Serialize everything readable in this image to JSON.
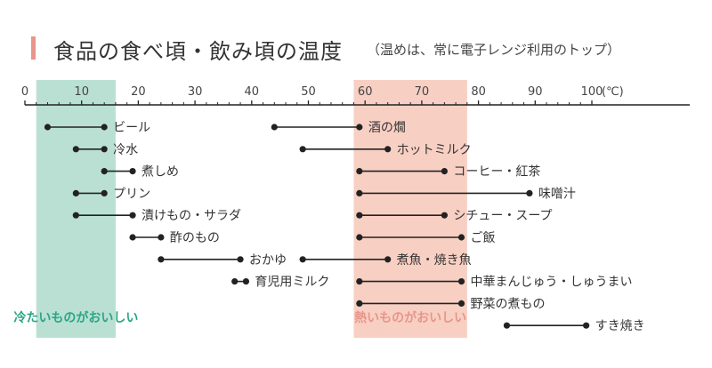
{
  "title": "食品の食べ頃・飲み頃の温度",
  "subtitle": "（温めは、常に電子レンジ利用のトップ）",
  "colors": {
    "accent": "#e8958a",
    "cold_zone": "#b9e0d3",
    "hot_zone": "#f8cfc3",
    "cold_text": "#2aa585",
    "hot_text": "#e8958a",
    "line": "#222222"
  },
  "chart_data": {
    "type": "range",
    "title": "食品の食べ頃・飲み頃の温度",
    "subtitle": "（温めは、常に電子レンジ利用のトップ）",
    "axis": {
      "unit": "(℃)",
      "min": 0,
      "max": 100,
      "ticks": [
        0,
        10,
        20,
        30,
        40,
        50,
        60,
        70,
        80,
        90,
        100
      ],
      "tick_labels": [
        "0",
        "10",
        "20",
        "30",
        "40",
        "50",
        "60",
        "70",
        "80",
        "90",
        "100"
      ]
    },
    "zones": [
      {
        "label": "冷たいものがおいしい",
        "from": 2,
        "to": 16,
        "color": "#b9e0d3"
      },
      {
        "label": "熱いものがおいしい",
        "from": 58,
        "to": 78,
        "color": "#f8cfc3"
      }
    ],
    "items": [
      {
        "label": "ビール",
        "from": 4,
        "to": 14,
        "row": 0
      },
      {
        "label": "冷水",
        "from": 9,
        "to": 14,
        "row": 1
      },
      {
        "label": "煮しめ",
        "from": 14,
        "to": 19,
        "row": 2
      },
      {
        "label": "プリン",
        "from": 9,
        "to": 14,
        "row": 3
      },
      {
        "label": "漬けもの・サラダ",
        "from": 9,
        "to": 19,
        "row": 4
      },
      {
        "label": "酢のもの",
        "from": 19,
        "to": 24,
        "row": 5
      },
      {
        "label": "おかゆ",
        "from": 24,
        "to": 38,
        "row": 6
      },
      {
        "label": "育児用ミルク",
        "from": 37,
        "to": 39,
        "row": 7
      },
      {
        "label": "酒の燗",
        "from": 44,
        "to": 59,
        "row": 0
      },
      {
        "label": "ホットミルク",
        "from": 49,
        "to": 64,
        "row": 1
      },
      {
        "label": "コーヒー・紅茶",
        "from": 59,
        "to": 74,
        "row": 2
      },
      {
        "label": "味噌汁",
        "from": 59,
        "to": 89,
        "row": 3
      },
      {
        "label": "シチュー・スープ",
        "from": 59,
        "to": 74,
        "row": 4
      },
      {
        "label": "ご飯",
        "from": 59,
        "to": 77,
        "row": 5
      },
      {
        "label": "煮魚・焼き魚",
        "from": 49,
        "to": 64,
        "row": 6
      },
      {
        "label": "中華まんじゅう・しゅうまい",
        "from": 59,
        "to": 77,
        "row": 7
      },
      {
        "label": "野菜の煮もの",
        "from": 59,
        "to": 77,
        "row": 8
      },
      {
        "label": "すき焼き",
        "from": 85,
        "to": 99,
        "row": 9
      }
    ]
  }
}
